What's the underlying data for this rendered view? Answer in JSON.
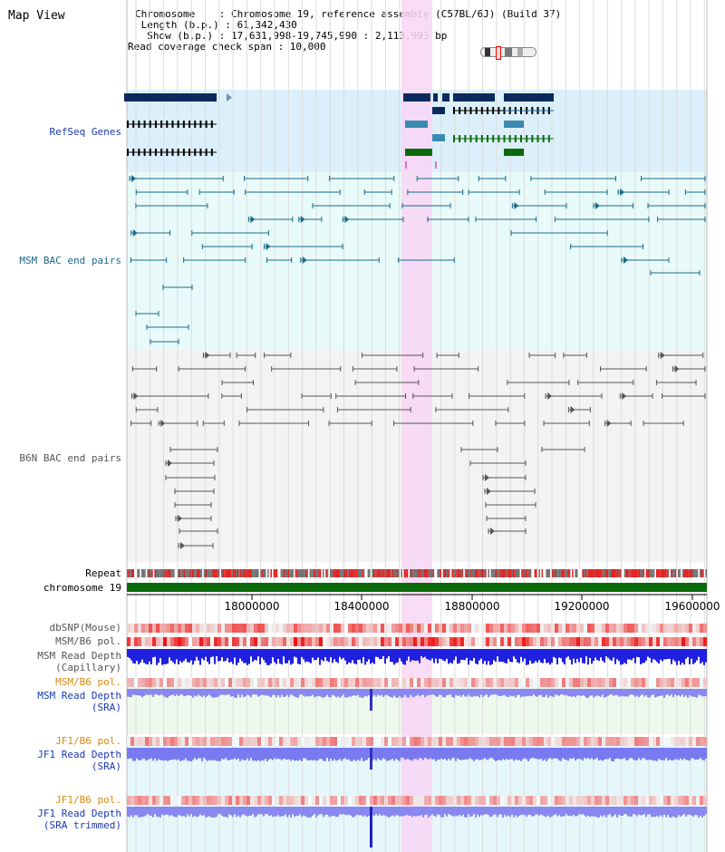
{
  "header": {
    "title": "Map View",
    "chromosome_line": "Chromosome    : Chromosome 19, reference assembly (C57BL/6J) (Build 37)",
    "length_line": " Length (b.p.) : 61,342,430",
    "show_line": "  Show (b.p.) : 17,631,998-19,745,990 : 2,113,993 bp",
    "coverage_line": "Read coverage check span : 10,000"
  },
  "tracks": {
    "refseq": "RefSeq Genes",
    "msm_bac": "MSM BAC end pairs",
    "b6n_bac": "B6N BAC end pairs",
    "repeat": "Repeat",
    "chromosome": "chromosome 19",
    "dbsnp": "dbSNP(Mouse)",
    "msm_b6_pol_1": "MSM/B6 pol.",
    "msm_depth_cap_1": "MSM Read Depth",
    "msm_depth_cap_2": "(Capillary)",
    "msm_b6_pol_2": "MSM/B6 pol.",
    "msm_depth_sra_1": "MSM Read Depth",
    "msm_depth_sra_2": "(SRA)",
    "jf1_b6_pol_1": "JF1/B6 pol.",
    "jf1_depth_sra_1": "JF1 Read Depth",
    "jf1_depth_sra_2": "(SRA)",
    "jf1_b6_pol_2": "JF1/B6 pol.",
    "jf1_depth_trim_1": "JF1 Read Depth",
    "jf1_depth_trim_2": "(SRA trimmed)"
  },
  "axis": {
    "ticks": [
      "18000000",
      "18400000",
      "18800000",
      "19200000",
      "19600000"
    ]
  },
  "colors": {
    "refseq_bg": "#dbf0fa",
    "msm_bg": "#e8fafa",
    "b6n_bg": "#f3f3f6",
    "highlight": "#f8d6f4",
    "gene_dark": "#0a2a5e",
    "gene_teal": "#3a8ab0",
    "gene_green": "#0a6a0a",
    "msm_line": "#1a6a8a",
    "b6n_line": "#555555",
    "chrom_bar": "#0a6a0a",
    "label_blue": "#1a3ab0",
    "label_teal": "#1a6a8a",
    "label_orange": "#d88a10",
    "label_gray": "#555555"
  }
}
